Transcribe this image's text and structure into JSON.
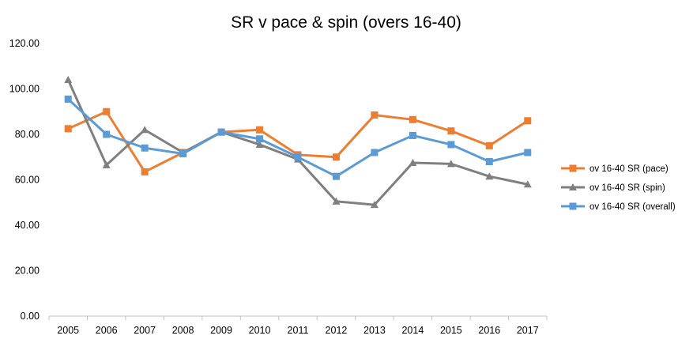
{
  "chart_data": {
    "type": "line",
    "title": "SR v pace & spin (overs 16-40)",
    "xlabel": "",
    "ylabel": "",
    "categories": [
      "2005",
      "2006",
      "2007",
      "2008",
      "2009",
      "2010",
      "2011",
      "2012",
      "2013",
      "2014",
      "2015",
      "2016",
      "2017"
    ],
    "ylim": [
      0,
      120
    ],
    "yticks": [
      "0.00",
      "20.00",
      "40.00",
      "60.00",
      "80.00",
      "100.00",
      "120.00"
    ],
    "grid": false,
    "legend_position": "right",
    "series": [
      {
        "name": "ov 16-40 SR (pace)",
        "color": "#ED7D31",
        "marker": "square",
        "values": [
          82.5,
          90,
          63.5,
          72,
          81,
          82,
          71,
          70,
          88.5,
          86.5,
          81.5,
          75,
          86
        ]
      },
      {
        "name": "ov 16-40 SR (spin)",
        "color": "#7F7F7F",
        "marker": "triangle",
        "values": [
          104,
          66.5,
          82,
          72,
          81,
          75.5,
          69,
          50.5,
          49,
          67.5,
          67,
          61.5,
          58
        ]
      },
      {
        "name": "ov 16-40 SR (overall)",
        "color": "#5B9BD5",
        "marker": "square",
        "values": [
          95.5,
          80,
          74,
          71.5,
          81,
          78,
          70,
          61.5,
          72,
          79.5,
          75.5,
          68,
          72
        ]
      }
    ]
  }
}
